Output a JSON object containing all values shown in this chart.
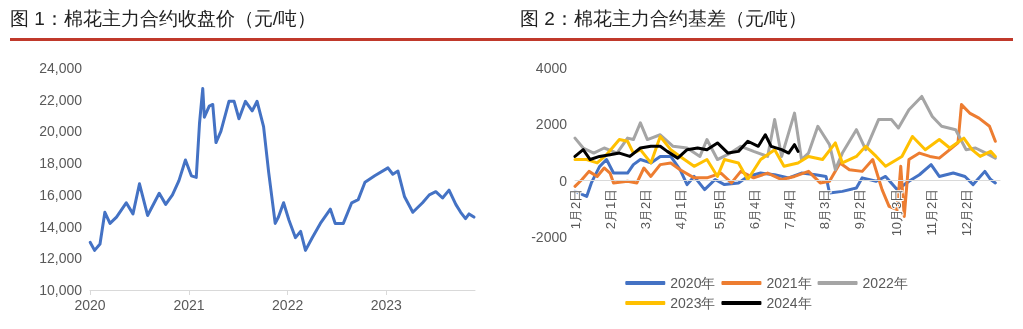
{
  "chart_data": [
    {
      "type": "line",
      "title": "图 1：棉花主力合约收盘价（元/吨）",
      "xlim": [
        "2020-01-01",
        "2023-11-25"
      ],
      "xticks": [
        "2020",
        "2021",
        "2022",
        "2023"
      ],
      "ylim": [
        10000,
        24000
      ],
      "yticks": [
        {
          "value": 10000,
          "label": "10,000"
        },
        {
          "value": 12000,
          "label": "12,000"
        },
        {
          "value": 14000,
          "label": "14,000"
        },
        {
          "value": 16000,
          "label": "16,000"
        },
        {
          "value": 18000,
          "label": "18,000"
        },
        {
          "value": 20000,
          "label": "20,000"
        },
        {
          "value": 22000,
          "label": "22,000"
        },
        {
          "value": 24000,
          "label": "24,000"
        }
      ],
      "grid": false,
      "marker": "none",
      "line_style": "solid",
      "series": [
        {
          "color": "#4472c4",
          "x": [
            "2020-01-02",
            "2020-01-18",
            "2020-02-07",
            "2020-02-25",
            "2020-03-15",
            "2020-04-08",
            "2020-05-14",
            "2020-06-08",
            "2020-07-02",
            "2020-08-01",
            "2020-09-13",
            "2020-10-07",
            "2020-11-01",
            "2020-11-25",
            "2020-12-19",
            "2021-01-10",
            "2021-01-28",
            "2021-02-09",
            "2021-02-21",
            "2021-02-27",
            "2021-03-17",
            "2021-03-30",
            "2021-04-11",
            "2021-04-29",
            "2021-05-29",
            "2021-06-17",
            "2021-07-05",
            "2021-07-29",
            "2021-08-23",
            "2021-09-10",
            "2021-10-04",
            "2021-10-23",
            "2021-11-16",
            "2021-11-28",
            "2021-12-17",
            "2022-01-06",
            "2022-01-30",
            "2022-02-18",
            "2022-03-08",
            "2022-04-02",
            "2022-05-02",
            "2022-06-08",
            "2022-06-26",
            "2022-07-26",
            "2022-08-26",
            "2022-09-19",
            "2022-10-14",
            "2022-11-19",
            "2023-01-07",
            "2023-01-25",
            "2023-02-13",
            "2023-03-09",
            "2023-04-09",
            "2023-05-15",
            "2023-06-09",
            "2023-07-03",
            "2023-07-28",
            "2023-08-21",
            "2023-09-15",
            "2023-10-03",
            "2023-10-21",
            "2023-11-03",
            "2023-11-21"
          ],
          "values": [
            13000,
            12500,
            12900,
            14900,
            14200,
            14600,
            15500,
            14800,
            16700,
            14700,
            16100,
            15400,
            16000,
            16900,
            18200,
            17200,
            17100,
            20500,
            22700,
            20900,
            21600,
            21700,
            19300,
            20000,
            21900,
            21900,
            20800,
            21900,
            21300,
            21900,
            20300,
            17400,
            14200,
            14600,
            15500,
            14400,
            13300,
            13700,
            12500,
            13300,
            14200,
            15100,
            14200,
            14200,
            15500,
            15700,
            16800,
            17200,
            17700,
            17300,
            17500,
            15900,
            14900,
            15500,
            16000,
            16200,
            15800,
            16300,
            15400,
            14900,
            14500,
            14800,
            14600
          ]
        }
      ]
    },
    {
      "type": "line",
      "title": "图 2：棉花主力合约基差（元/吨）",
      "xlim": [
        "--01-02",
        "--12-31"
      ],
      "xticks": [
        {
          "value": "--01-02",
          "label": "1月2日"
        },
        {
          "value": "--02-01",
          "label": "2月1日"
        },
        {
          "value": "--03-02",
          "label": "3月2日"
        },
        {
          "value": "--04-01",
          "label": "4月1日"
        },
        {
          "value": "--05-05",
          "label": "5月5日"
        },
        {
          "value": "--06-04",
          "label": "6月4日"
        },
        {
          "value": "--07-04",
          "label": "7月4日"
        },
        {
          "value": "--08-03",
          "label": "8月3日"
        },
        {
          "value": "--09-02",
          "label": "9月2日"
        },
        {
          "value": "--10-03",
          "label": "10月3日"
        },
        {
          "value": "--11-02",
          "label": "11月2日"
        },
        {
          "value": "--12-02",
          "label": "12月2日"
        }
      ],
      "ylim": [
        -2000,
        4000
      ],
      "yticks": [
        -2000,
        0,
        2000,
        4000
      ],
      "grid": false,
      "legend": "bottom",
      "marker": "none",
      "line_style": "solid",
      "series": [
        {
          "name": "2020年",
          "color": "#4472c4",
          "x": [
            "--01-02",
            "--01-12",
            "--01-16",
            "--01-23",
            "--01-29",
            "--02-04",
            "--02-16",
            "--02-21",
            "--02-27",
            "--03-07",
            "--03-15",
            "--03-24",
            "--04-01",
            "--04-07",
            "--04-13",
            "--04-22",
            "--05-01",
            "--05-09",
            "--05-21",
            "--05-29",
            "--06-09",
            "--06-21",
            "--07-03",
            "--07-14",
            "--07-26",
            "--08-04",
            "--08-07",
            "--08-18",
            "--08-30",
            "--09-04",
            "--09-16",
            "--09-24",
            "--10-04",
            "--10-14",
            "--10-23",
            "--11-02",
            "--11-09",
            "--11-21",
            "--12-01",
            "--12-08",
            "--12-18",
            "--12-23",
            "--12-27"
          ],
          "values": [
            -380,
            -560,
            -80,
            500,
            750,
            270,
            270,
            570,
            750,
            630,
            860,
            860,
            390,
            -140,
            150,
            -320,
            40,
            -140,
            -80,
            150,
            270,
            210,
            100,
            270,
            210,
            150,
            -440,
            -380,
            -260,
            100,
            -20,
            150,
            -320,
            -20,
            210,
            570,
            150,
            270,
            150,
            -140,
            330,
            40,
            -80
          ]
        },
        {
          "name": "2021年",
          "color": "#ed7d31",
          "x": [
            "--01-02",
            "--01-08",
            "--01-14",
            "--01-21",
            "--01-27",
            "--02-01",
            "--02-04",
            "--02-16",
            "--02-24",
            "--03-01",
            "--03-07",
            "--03-15",
            "--03-24",
            "--04-01",
            "--04-13",
            "--04-24",
            "--05-06",
            "--05-15",
            "--05-23",
            "--06-03",
            "--06-15",
            "--06-27",
            "--07-08",
            "--07-20",
            "--07-30",
            "--08-07",
            "--08-16",
            "--08-24",
            "--09-04",
            "--09-13",
            "--09-21",
            "--09-27",
            "--10-04",
            "--10-07",
            "--10-10",
            "--10-14",
            "--10-23",
            "--11-01",
            "--11-09",
            "--11-18",
            "--11-25",
            "--11-28",
            "--12-05",
            "--12-13",
            "--12-22",
            "--12-27"
          ],
          "values": [
            -200,
            40,
            330,
            150,
            450,
            270,
            -80,
            -20,
            -80,
            450,
            150,
            570,
            630,
            390,
            100,
            100,
            270,
            -80,
            330,
            100,
            270,
            40,
            150,
            330,
            -80,
            -20,
            630,
            390,
            330,
            750,
            -320,
            -910,
            -1030,
            510,
            -1270,
            750,
            980,
            860,
            800,
            1100,
            1340,
            2700,
            2400,
            2220,
            1930,
            1400
          ]
        },
        {
          "name": "2022年",
          "color": "#a5a5a5",
          "x": [
            "--01-02",
            "--01-09",
            "--01-18",
            "--01-27",
            "--02-07",
            "--02-16",
            "--02-21",
            "--02-27",
            "--03-04",
            "--03-15",
            "--03-26",
            "--04-07",
            "--04-18",
            "--04-24",
            "--05-03",
            "--05-14",
            "--05-23",
            "--06-03",
            "--06-15",
            "--06-21",
            "--06-27",
            "--07-08",
            "--07-14",
            "--07-20",
            "--07-28",
            "--08-07",
            "--08-12",
            "--08-18",
            "--08-30",
            "--09-07",
            "--09-18",
            "--09-29",
            "--10-05",
            "--10-14",
            "--10-25",
            "--11-03",
            "--11-11",
            "--11-23",
            "--12-02",
            "--12-10",
            "--12-19",
            "--12-27"
          ],
          "values": [
            1510,
            1160,
            980,
            1160,
            980,
            1510,
            1460,
            2050,
            1460,
            1630,
            1220,
            1160,
            860,
            1460,
            750,
            980,
            1220,
            1040,
            860,
            2170,
            860,
            2400,
            750,
            980,
            1930,
            1280,
            390,
            980,
            1810,
            1100,
            2170,
            2170,
            1870,
            2520,
            2990,
            2280,
            1930,
            1810,
            1100,
            1160,
            980,
            800
          ]
        },
        {
          "name": "2023年",
          "color": "#ffc000",
          "x": [
            "--01-02",
            "--01-12",
            "--01-21",
            "--01-29",
            "--02-09",
            "--02-16",
            "--02-21",
            "--02-27",
            "--03-07",
            "--03-15",
            "--03-24",
            "--04-01",
            "--04-13",
            "--04-24",
            "--05-03",
            "--05-09",
            "--05-21",
            "--05-29",
            "--06-09",
            "--06-21",
            "--06-29",
            "--07-11",
            "--07-20",
            "--08-01",
            "--08-12",
            "--08-18",
            "--08-30",
            "--09-07",
            "--09-16",
            "--09-24",
            "--10-08",
            "--10-17",
            "--10-28",
            "--11-09",
            "--11-18",
            "--11-30",
            "--12-07",
            "--12-14",
            "--12-23",
            "--12-27"
          ],
          "values": [
            750,
            750,
            630,
            920,
            1460,
            1400,
            980,
            1100,
            630,
            1570,
            1100,
            860,
            510,
            750,
            150,
            750,
            630,
            40,
            750,
            1100,
            510,
            630,
            860,
            750,
            1340,
            630,
            860,
            1220,
            860,
            510,
            860,
            1570,
            1100,
            1460,
            1160,
            1510,
            1100,
            860,
            1040,
            860
          ]
        },
        {
          "name": "2024年",
          "color": "#000000",
          "x": [
            "--01-02",
            "--01-09",
            "--01-15",
            "--01-23",
            "--02-01",
            "--02-09",
            "--02-18",
            "--02-27",
            "--03-07",
            "--03-15",
            "--03-21",
            "--03-30",
            "--04-07",
            "--04-16",
            "--04-24",
            "--05-03",
            "--05-12",
            "--05-21",
            "--05-29",
            "--06-07",
            "--06-13",
            "--06-18",
            "--06-27",
            "--07-03",
            "--07-08",
            "--07-11"
          ],
          "values": [
            860,
            1100,
            750,
            860,
            920,
            980,
            860,
            1160,
            1220,
            1220,
            1040,
            800,
            1100,
            1160,
            1100,
            1340,
            980,
            1040,
            1400,
            1220,
            1630,
            1220,
            1100,
            980,
            1280,
            1040
          ]
        }
      ]
    }
  ]
}
